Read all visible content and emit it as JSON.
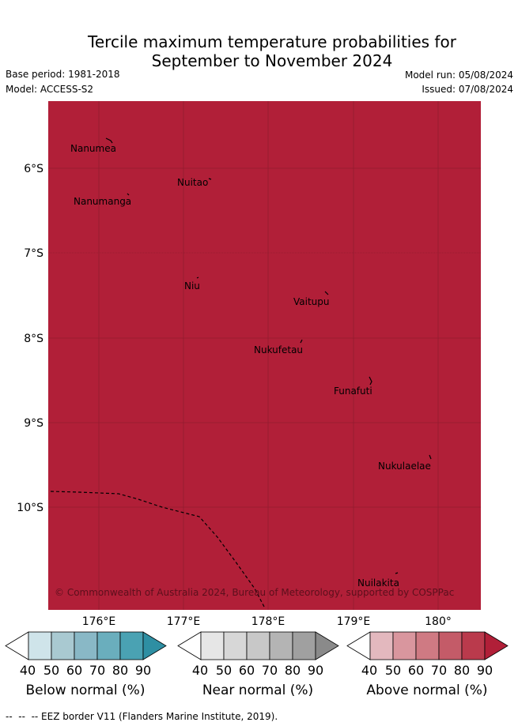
{
  "header": {
    "title_line1": "Tercile maximum temperature probabilities for",
    "title_line2": "September to November 2024",
    "base_period": "Base period: 1981-2018",
    "model": "Model: ACCESS-S2",
    "model_run": "Model run: 05/08/2024",
    "issued": "Issued: 07/08/2024"
  },
  "map": {
    "fill_color": "#b11f38",
    "lat_labels": [
      "6°S",
      "7°S",
      "8°S",
      "9°S",
      "10°S"
    ],
    "lon_labels": [
      "176°E",
      "177°E",
      "178°E",
      "179°E",
      "180°"
    ],
    "islands": [
      "Nanumea",
      "Nuitao",
      "Nanumanga",
      "Niu",
      "Vaitupu",
      "Nukufetau",
      "Funafuti",
      "Nukulaelae",
      "Nuilakita"
    ],
    "copyright": "© Commonwealth of Australia 2024, Bureau of Meteorology, supported by COSPPac"
  },
  "colorbars": [
    {
      "name": "below",
      "label": "Below normal (%)",
      "ticks": [
        "40",
        "50",
        "60",
        "70",
        "80",
        "90"
      ],
      "colors": [
        "#ffffff",
        "#cfe4ea",
        "#a9c9d1",
        "#89b8c6",
        "#6aaebd",
        "#4aa2b3",
        "#2e8fa3"
      ]
    },
    {
      "name": "near",
      "label": "Near normal (%)",
      "ticks": [
        "40",
        "50",
        "60",
        "70",
        "80",
        "90"
      ],
      "colors": [
        "#ffffff",
        "#e6e6e6",
        "#d7d7d7",
        "#c8c8c8",
        "#b4b4b4",
        "#a0a0a0",
        "#8a8a8a"
      ]
    },
    {
      "name": "above",
      "label": "Above normal (%)",
      "ticks": [
        "40",
        "50",
        "60",
        "70",
        "80",
        "90"
      ],
      "colors": [
        "#ffffff",
        "#e3b8be",
        "#d9969e",
        "#cf7a83",
        "#c45b68",
        "#ba3a4c",
        "#b11f38"
      ]
    }
  ],
  "footnote": "--  --  -- EEZ border V11 (Flanders Marine Institute, 2019)."
}
